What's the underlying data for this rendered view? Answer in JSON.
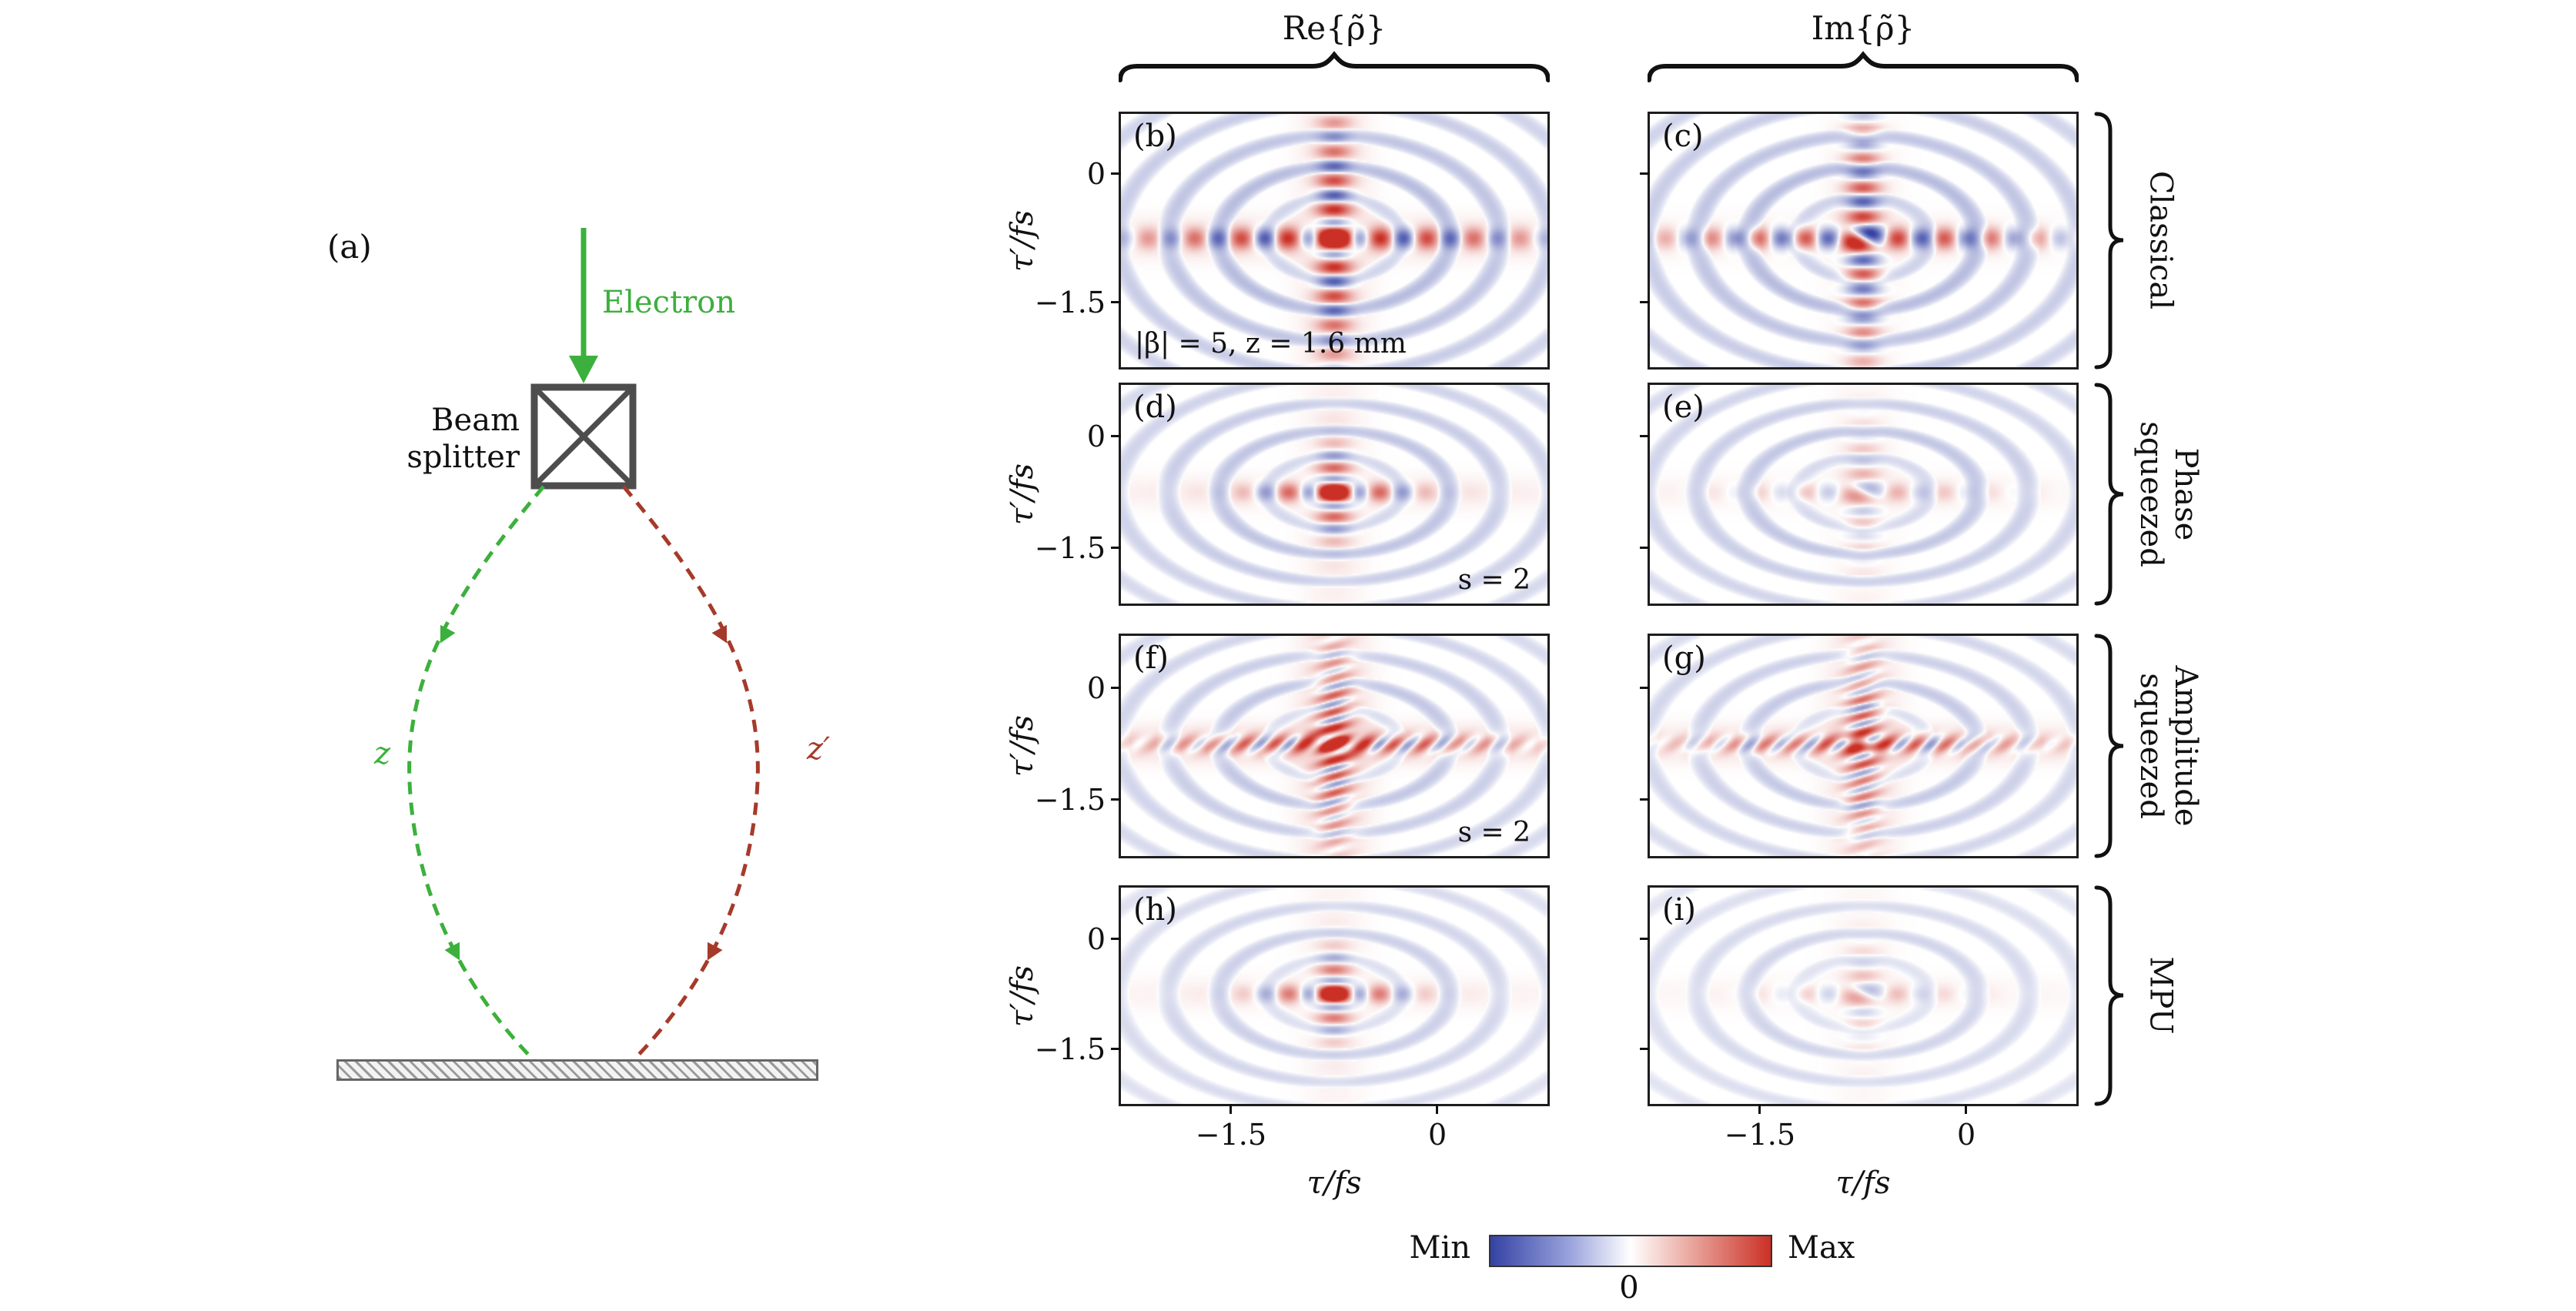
{
  "apparatus": {
    "panel_label": "(a)",
    "electron_label": "Electron",
    "beam_splitter_label": "Beam\nsplitter",
    "path_left_label": "z",
    "path_right_label": "z′",
    "colors": {
      "electron_green": "#3cb03c",
      "path_red": "#a63a2a",
      "splitter_gray": "#4d4d4d"
    }
  },
  "columns": [
    {
      "header": "Re{ρ̃}"
    },
    {
      "header": "Im{ρ̃}"
    }
  ],
  "rows": [
    {
      "label": "Classical"
    },
    {
      "label": "Phase\nsqueezed"
    },
    {
      "label": "Amplitude\nsqueezed"
    },
    {
      "label": "MPU"
    }
  ],
  "axes": {
    "xlabel": "τ/fs",
    "ylabel": "τ′/fs",
    "xticks": [
      "−1.5",
      "0"
    ],
    "yticks": [
      "0",
      "−1.5"
    ]
  },
  "colorbar": {
    "min": "Min",
    "max": "Max",
    "zero": "0",
    "negative_color": "#3442a4",
    "positive_color": "#cb3026"
  },
  "chart_data": [
    {
      "type": "heatmap",
      "label": "(b)",
      "quantity": "Re{ρ̃}",
      "state": "Classical",
      "annotation": "|β| = 5, z = 1.6 mm",
      "annotation_pos": "bl",
      "x_range": [
        -2.3,
        0.8
      ],
      "y_range": [
        -2.25,
        0.7
      ],
      "xticks": [
        -1.5,
        0
      ],
      "yticks": [
        0,
        -1.5
      ],
      "center": [
        -0.75,
        -0.75
      ],
      "pattern": {
        "phase": 0,
        "band": 1.15,
        "band_len": 1.35,
        "dot_period": 0.34,
        "center_peak": 1.3,
        "arc": 0.5,
        "glow": 0.18,
        "tilt": 0
      }
    },
    {
      "type": "heatmap",
      "label": "(c)",
      "quantity": "Im{ρ̃}",
      "state": "Classical",
      "x_range": [
        -2.3,
        0.8
      ],
      "y_range": [
        -2.25,
        0.7
      ],
      "xticks": [
        -1.5,
        0
      ],
      "yticks": [
        0,
        -1.5
      ],
      "center": [
        -0.75,
        -0.75
      ],
      "pattern": {
        "phase": 1.5708,
        "band": 1.05,
        "band_len": 1.35,
        "dot_period": 0.34,
        "center_peak": 0,
        "arc": 0.5,
        "glow": 0.08,
        "tilt": 0
      }
    },
    {
      "type": "heatmap",
      "label": "(d)",
      "quantity": "Re{ρ̃}",
      "state": "Phase squeezed",
      "annotation": "s = 2",
      "annotation_pos": "br",
      "x_range": [
        -2.3,
        0.8
      ],
      "y_range": [
        -2.25,
        0.7
      ],
      "xticks": [
        -1.5,
        0
      ],
      "yticks": [
        0,
        -1.5
      ],
      "center": [
        -0.75,
        -0.75
      ],
      "pattern": {
        "phase": 0,
        "band": 1.1,
        "band_len": 0.55,
        "dot_period": 0.34,
        "center_peak": 1.2,
        "arc": 0.42,
        "glow": 0.08,
        "tilt": 0
      }
    },
    {
      "type": "heatmap",
      "label": "(e)",
      "quantity": "Im{ρ̃}",
      "state": "Phase squeezed",
      "x_range": [
        -2.3,
        0.8
      ],
      "y_range": [
        -2.25,
        0.7
      ],
      "xticks": [
        -1.5,
        0
      ],
      "yticks": [
        0,
        -1.5
      ],
      "center": [
        -0.75,
        -0.75
      ],
      "pattern": {
        "phase": 1.5708,
        "band": 0.33,
        "band_len": 0.8,
        "dot_period": 0.34,
        "center_peak": 0,
        "arc": 0.4,
        "glow": 0.05,
        "tilt": 0
      }
    },
    {
      "type": "heatmap",
      "label": "(f)",
      "quantity": "Re{ρ̃}",
      "state": "Amplitude squeezed",
      "annotation": "s = 2",
      "annotation_pos": "br",
      "x_range": [
        -2.3,
        0.8
      ],
      "y_range": [
        -2.25,
        0.7
      ],
      "xticks": [
        -1.5,
        0
      ],
      "yticks": [
        0,
        -1.5
      ],
      "center": [
        -0.75,
        -0.75
      ],
      "pattern": {
        "phase": 0,
        "band": 0.95,
        "band_len": 1.1,
        "dot_period": 0.22,
        "center_peak": 1.0,
        "arc": 0.4,
        "glow": 0.3,
        "tilt": 0.5
      }
    },
    {
      "type": "heatmap",
      "label": "(g)",
      "quantity": "Im{ρ̃}",
      "state": "Amplitude squeezed",
      "x_range": [
        -2.3,
        0.8
      ],
      "y_range": [
        -2.25,
        0.7
      ],
      "xticks": [
        -1.5,
        0
      ],
      "yticks": [
        0,
        -1.5
      ],
      "center": [
        -0.75,
        -0.75
      ],
      "pattern": {
        "phase": 1.5708,
        "band": 0.8,
        "band_len": 1.1,
        "dot_period": 0.22,
        "center_peak": 0.25,
        "arc": 0.38,
        "glow": 0.24,
        "tilt": 0.5
      }
    },
    {
      "type": "heatmap",
      "label": "(h)",
      "quantity": "Re{ρ̃}",
      "state": "MPU",
      "x_range": [
        -2.3,
        0.8
      ],
      "y_range": [
        -2.25,
        0.7
      ],
      "xticks": [
        -1.5,
        0
      ],
      "yticks": [
        0,
        -1.5
      ],
      "center": [
        -0.75,
        -0.75
      ],
      "pattern": {
        "phase": 0,
        "band": 1.0,
        "band_len": 0.5,
        "dot_period": 0.34,
        "center_peak": 1.1,
        "arc": 0.32,
        "glow": 0.06,
        "tilt": 0
      }
    },
    {
      "type": "heatmap",
      "label": "(i)",
      "quantity": "Im{ρ̃}",
      "state": "MPU",
      "x_range": [
        -2.3,
        0.8
      ],
      "y_range": [
        -2.25,
        0.7
      ],
      "xticks": [
        -1.5,
        0
      ],
      "yticks": [
        0,
        -1.5
      ],
      "center": [
        -0.75,
        -0.75
      ],
      "pattern": {
        "phase": 1.5708,
        "band": 0.28,
        "band_len": 0.6,
        "dot_period": 0.34,
        "center_peak": 0,
        "arc": 0.28,
        "glow": 0.04,
        "tilt": 0
      }
    }
  ]
}
